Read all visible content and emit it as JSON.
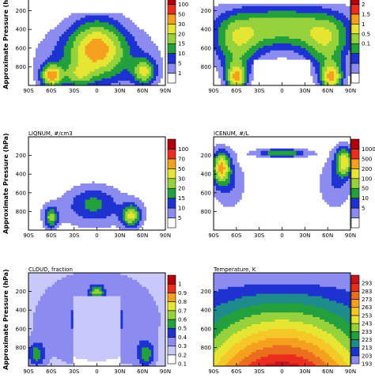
{
  "chart_data": [
    {
      "type": "heatmap",
      "title": "",
      "ylabel": "Approximate Pressure (hPa)",
      "x_ticks": [
        "90S",
        "60S",
        "30S",
        "0",
        "30N",
        "60N",
        "90N"
      ],
      "y_ticks": [
        "200",
        "400",
        "600",
        "800"
      ],
      "levels": [
        "1",
        "5",
        "10",
        "15",
        "20",
        "30",
        "50",
        "100"
      ],
      "colors": [
        "#ffffff",
        "#8c8cf0",
        "#1e32d2",
        "#23a03c",
        "#96d23c",
        "#e6e632",
        "#f5a01e",
        "#eb2d1e",
        "#b4000a"
      ]
    },
    {
      "type": "heatmap",
      "title": "",
      "y_ticks": [
        "200",
        "400",
        "600",
        "800"
      ],
      "x_ticks": [
        "90S",
        "60S",
        "30S",
        "0",
        "30N",
        "60N",
        "90N"
      ],
      "levels": [
        "0.1",
        "0.5",
        "1",
        "1.5",
        "2"
      ],
      "colors": [
        "#ffffff",
        "#8c8cf0",
        "#1e32d2",
        "#23a03c",
        "#96d23c",
        "#e6e632",
        "#f5a01e",
        "#eb2d1e",
        "#b4000a"
      ]
    },
    {
      "type": "heatmap",
      "title": "LIQNUM,  #/cm3",
      "ylabel": "Approximate Pressure (hPa)",
      "x_ticks": [
        "90S",
        "60S",
        "30S",
        "0",
        "30N",
        "60N",
        "90N"
      ],
      "y_ticks": [
        "200",
        "400",
        "600",
        "800"
      ],
      "levels": [
        "5",
        "10",
        "15",
        "20",
        "30",
        "50",
        "70",
        "100"
      ],
      "colors": [
        "#ffffff",
        "#8c8cf0",
        "#1e32d2",
        "#23a03c",
        "#96d23c",
        "#e6e632",
        "#f5a01e",
        "#eb2d1e",
        "#b4000a"
      ]
    },
    {
      "type": "heatmap",
      "title": "ICENUM,  #/L",
      "x_ticks": [
        "90S",
        "60S",
        "30S",
        "0",
        "30N",
        "60N",
        "90N"
      ],
      "y_ticks": [
        "200",
        "400",
        "600",
        "800"
      ],
      "levels": [
        "5",
        "10",
        "50",
        "100",
        "200",
        "500",
        "1000"
      ],
      "colors": [
        "#ffffff",
        "#8c8cf0",
        "#1e32d2",
        "#23a03c",
        "#96d23c",
        "#e6e632",
        "#f5a01e",
        "#eb2d1e",
        "#b4000a"
      ]
    },
    {
      "type": "heatmap",
      "title": "CLOUD,  fraction",
      "ylabel": "Approximate Pressure (hPa)",
      "x_ticks": [
        "90S",
        "60S",
        "30S",
        "0",
        "30N",
        "60N",
        "90N"
      ],
      "y_ticks": [
        "200",
        "400",
        "600",
        "800"
      ],
      "levels": [
        "0.1",
        "0.2",
        "0.3",
        "0.4",
        "0.5",
        "0.6",
        "0.7",
        "0.8",
        "0.9",
        "1"
      ],
      "colors": [
        "#ffffff",
        "#c8c8fa",
        "#8c8cf0",
        "#1e32d2",
        "#23a03c",
        "#96d23c",
        "#e6e632",
        "#f5a01e",
        "#eb2d1e",
        "#b4000a"
      ]
    },
    {
      "type": "heatmap",
      "title": "Temperature,  K",
      "x_ticks": [
        "90S",
        "60S",
        "30S",
        "0",
        "30N",
        "60N",
        "90N"
      ],
      "y_ticks": [
        "200",
        "400",
        "600",
        "800"
      ],
      "levels": [
        "193",
        "203",
        "213",
        "223",
        "233",
        "243",
        "253",
        "263",
        "273",
        "283",
        "293"
      ],
      "colors": [
        "#8c8cf0",
        "#1e32d2",
        "#1e8c8c",
        "#23a03c",
        "#96d23c",
        "#e6e632",
        "#f5c828",
        "#f5a01e",
        "#eb6e1e",
        "#eb2d1e",
        "#c8141e"
      ]
    }
  ]
}
